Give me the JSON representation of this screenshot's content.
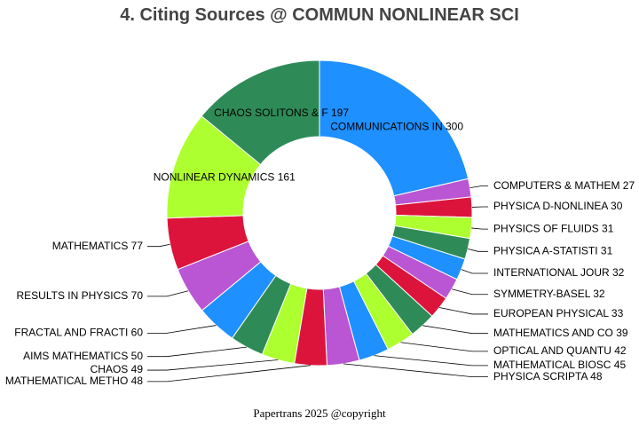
{
  "chart_title": "4. Citing Sources @ COMMUN NONLINEAR SCI",
  "footer_text": "Papertrans 2025 @copyright",
  "chart_data": {
    "type": "pie",
    "title": "4. Citing Sources @ COMMUN NONLINEAR SCI",
    "donut": true,
    "start_position": "top, clockwise",
    "labels": [
      "COMMUNICATIONS IN",
      "COMPUTERS & MATHEM",
      "PHYSICA D-NONLINEA",
      "PHYSICS OF FLUIDS",
      "PHYSICA A-STATISTI",
      "INTERNATIONAL JOUR",
      "SYMMETRY-BASEL",
      "EUROPEAN PHYSICAL ",
      "MATHEMATICS AND CO",
      "OPTICAL AND QUANTU",
      "MATHEMATICAL BIOSC",
      "PHYSICA SCRIPTA",
      "MATHEMATICAL METHO",
      "CHAOS",
      "AIMS MATHEMATICS",
      "FRACTAL AND FRACTI",
      "RESULTS IN PHYSICS",
      "MATHEMATICS",
      "NONLINEAR DYNAMICS",
      "CHAOS SOLITONS & F"
    ],
    "values": [
      300,
      27,
      30,
      31,
      31,
      32,
      32,
      33,
      39,
      42,
      45,
      48,
      48,
      49,
      50,
      60,
      70,
      77,
      161,
      197
    ],
    "colors": [
      "#1E90FF",
      "#BA55D3",
      "#DC143C",
      "#ADFF2F",
      "#2E8B57",
      "#1E90FF",
      "#BA55D3",
      "#DC143C",
      "#2E8B57",
      "#ADFF2F",
      "#1E90FF",
      "#BA55D3",
      "#DC143C",
      "#ADFF2F",
      "#2E8B57",
      "#1E90FF",
      "#BA55D3",
      "#DC143C",
      "#ADFF2F",
      "#2E8B57"
    ],
    "inside_labels": [
      "COMMUNICATIONS IN",
      "NONLINEAR DYNAMICS",
      "CHAOS SOLITONS & F"
    ]
  }
}
